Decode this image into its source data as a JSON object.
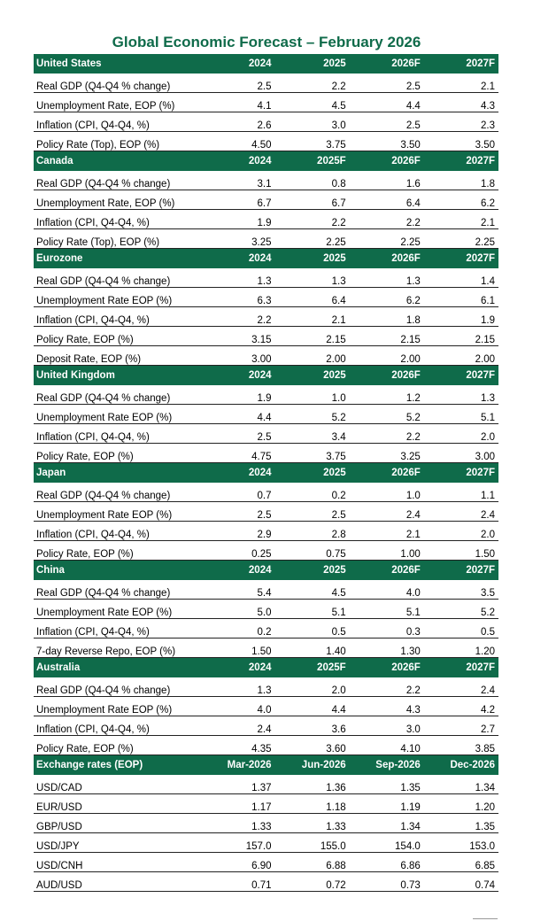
{
  "title": "Global Economic Forecast – February 2026",
  "sections": [
    {
      "name": "United States",
      "cols": [
        "2024",
        "2025",
        "2026F",
        "2027F"
      ],
      "rows": [
        {
          "label": "Real GDP (Q4-Q4 % change)",
          "values": [
            "2.5",
            "2.2",
            "2.5",
            "2.1"
          ]
        },
        {
          "label": "Unemployment Rate, EOP (%)",
          "values": [
            "4.1",
            "4.5",
            "4.4",
            "4.3"
          ]
        },
        {
          "label": "Inflation (CPI, Q4-Q4, %)",
          "values": [
            "2.6",
            "3.0",
            "2.5",
            "2.3"
          ]
        },
        {
          "label": "Policy Rate (Top), EOP (%)",
          "values": [
            "4.50",
            "3.75",
            "3.50",
            "3.50"
          ]
        }
      ]
    },
    {
      "name": "Canada",
      "cols": [
        "2024",
        "2025F",
        "2026F",
        "2027F"
      ],
      "rows": [
        {
          "label": "Real GDP (Q4-Q4 % change)",
          "values": [
            "3.1",
            "0.8",
            "1.6",
            "1.8"
          ]
        },
        {
          "label": "Unemployment Rate, EOP (%)",
          "values": [
            "6.7",
            "6.7",
            "6.4",
            "6.2"
          ]
        },
        {
          "label": "Inflation (CPI, Q4-Q4, %)",
          "values": [
            "1.9",
            "2.2",
            "2.2",
            "2.1"
          ]
        },
        {
          "label": "Policy Rate (Top), EOP (%)",
          "values": [
            "3.25",
            "2.25",
            "2.25",
            "2.25"
          ]
        }
      ]
    },
    {
      "name": "Eurozone",
      "cols": [
        "2024",
        "2025",
        "2026F",
        "2027F"
      ],
      "rows": [
        {
          "label": "Real GDP (Q4-Q4 % change)",
          "values": [
            "1.3",
            "1.3",
            "1.3",
            "1.4"
          ]
        },
        {
          "label": "Unemployment Rate EOP (%)",
          "values": [
            "6.3",
            "6.4",
            "6.2",
            "6.1"
          ]
        },
        {
          "label": "Inflation (CPI, Q4-Q4, %)",
          "values": [
            "2.2",
            "2.1",
            "1.8",
            "1.9"
          ]
        },
        {
          "label": "Policy Rate, EOP (%)",
          "values": [
            "3.15",
            "2.15",
            "2.15",
            "2.15"
          ]
        },
        {
          "label": "Deposit Rate, EOP (%)",
          "values": [
            "3.00",
            "2.00",
            "2.00",
            "2.00"
          ]
        }
      ]
    },
    {
      "name": "United Kingdom",
      "cols": [
        "2024",
        "2025",
        "2026F",
        "2027F"
      ],
      "rows": [
        {
          "label": "Real GDP (Q4-Q4 % change)",
          "values": [
            "1.9",
            "1.0",
            "1.2",
            "1.3"
          ]
        },
        {
          "label": "Unemployment Rate EOP (%)",
          "values": [
            "4.4",
            "5.2",
            "5.2",
            "5.1"
          ]
        },
        {
          "label": "Inflation (CPI, Q4-Q4, %)",
          "values": [
            "2.5",
            "3.4",
            "2.2",
            "2.0"
          ]
        },
        {
          "label": "Policy Rate, EOP (%)",
          "values": [
            "4.75",
            "3.75",
            "3.25",
            "3.00"
          ]
        }
      ]
    },
    {
      "name": "Japan",
      "cols": [
        "2024",
        "2025",
        "2026F",
        "2027F"
      ],
      "rows": [
        {
          "label": "Real GDP (Q4-Q4 % change)",
          "values": [
            "0.7",
            "0.2",
            "1.0",
            "1.1"
          ]
        },
        {
          "label": "Unemployment Rate EOP (%)",
          "values": [
            "2.5",
            "2.5",
            "2.4",
            "2.4"
          ]
        },
        {
          "label": "Inflation (CPI, Q4-Q4, %)",
          "values": [
            "2.9",
            "2.8",
            "2.1",
            "2.0"
          ]
        },
        {
          "label": "Policy Rate, EOP (%)",
          "values": [
            "0.25",
            "0.75",
            "1.00",
            "1.50"
          ]
        }
      ]
    },
    {
      "name": "China",
      "cols": [
        "2024",
        "2025",
        "2026F",
        "2027F"
      ],
      "rows": [
        {
          "label": "Real GDP (Q4-Q4 % change)",
          "values": [
            "5.4",
            "4.5",
            "4.0",
            "3.5"
          ]
        },
        {
          "label": "Unemployment Rate EOP (%)",
          "values": [
            "5.0",
            "5.1",
            "5.1",
            "5.2"
          ]
        },
        {
          "label": "Inflation (CPI, Q4-Q4, %)",
          "values": [
            "0.2",
            "0.5",
            "0.3",
            "0.5"
          ]
        },
        {
          "label": "7-day Reverse Repo, EOP (%)",
          "values": [
            "1.50",
            "1.40",
            "1.30",
            "1.20"
          ]
        }
      ]
    },
    {
      "name": "Australia",
      "cols": [
        "2024",
        "2025F",
        "2026F",
        "2027F"
      ],
      "rows": [
        {
          "label": "Real GDP (Q4-Q4 % change)",
          "values": [
            "1.3",
            "2.0",
            "2.2",
            "2.4"
          ]
        },
        {
          "label": "Unemployment Rate EOP (%)",
          "values": [
            "4.0",
            "4.4",
            "4.3",
            "4.2"
          ]
        },
        {
          "label": "Inflation (CPI, Q4-Q4, %)",
          "values": [
            "2.4",
            "3.6",
            "3.0",
            "2.7"
          ]
        },
        {
          "label": "Policy Rate, EOP (%)",
          "values": [
            "4.35",
            "3.60",
            "4.10",
            "3.85"
          ]
        }
      ]
    },
    {
      "name": "Exchange rates (EOP)",
      "cols": [
        "Mar-2026",
        "Jun-2026",
        "Sep-2026",
        "Dec-2026"
      ],
      "rows": [
        {
          "label": "USD/CAD",
          "values": [
            "1.37",
            "1.36",
            "1.35",
            "1.34"
          ]
        },
        {
          "label": "EUR/USD",
          "values": [
            "1.17",
            "1.18",
            "1.19",
            "1.20"
          ]
        },
        {
          "label": "GBP/USD",
          "values": [
            "1.33",
            "1.33",
            "1.34",
            "1.35"
          ]
        },
        {
          "label": "USD/JPY",
          "values": [
            "157.0",
            "155.0",
            "154.0",
            "153.0"
          ]
        },
        {
          "label": "USD/CNH",
          "values": [
            "6.90",
            "6.88",
            "6.86",
            "6.85"
          ]
        },
        {
          "label": "AUD/USD",
          "values": [
            "0.71",
            "0.72",
            "0.73",
            "0.74"
          ]
        }
      ]
    }
  ]
}
